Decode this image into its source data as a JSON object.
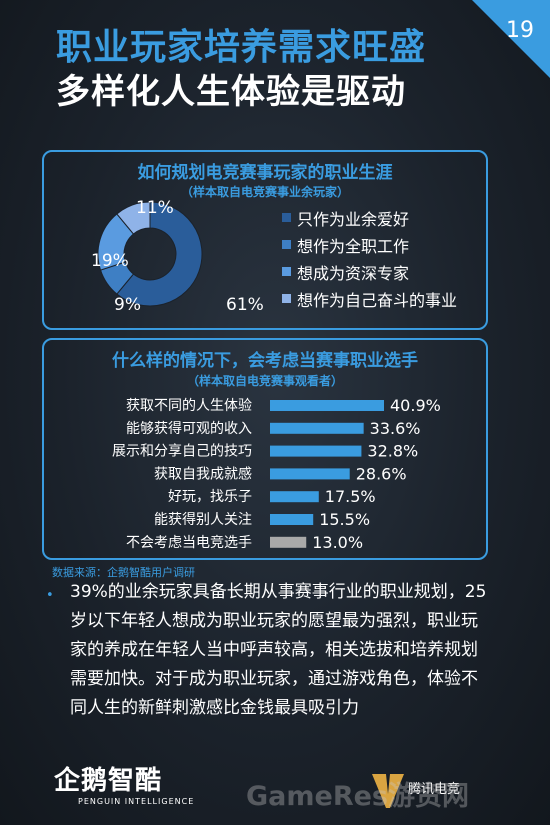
{
  "header": {
    "title_line1": "职业玩家培养需求旺盛",
    "title_line2": "多样化人生体验是驱动",
    "page_number": "19"
  },
  "colors": {
    "accent": "#3a9ce0",
    "donut": [
      "#2a5d9a",
      "#3e7fc4",
      "#5a9be0",
      "#8fb3e8"
    ],
    "bar": "#3a9ce0",
    "bar_muted": "#a9a9a9"
  },
  "chart_data": [
    {
      "type": "pie",
      "title": "如何规划电竞赛事玩家的职业生涯",
      "subtitle": "（样本取自电竞赛事业余玩家）",
      "categories": [
        "只作为业余爱好",
        "想作为全职工作",
        "想成为资深专家",
        "想作为自己奋斗的事业"
      ],
      "values": [
        61,
        9,
        19,
        11
      ],
      "value_labels": [
        "61%",
        "9%",
        "19%",
        "11%"
      ],
      "legend_position": "right"
    },
    {
      "type": "bar",
      "orientation": "horizontal",
      "title": "什么样的情况下，会考虑当赛事职业选手",
      "subtitle": "（样本取自电竞赛事观看者）",
      "categories": [
        "获取不同的人生体验",
        "能够获得可观的收入",
        "展示和分享自己的技巧",
        "获取自我成就感",
        "好玩，找乐子",
        "能获得别人关注",
        "不会考虑当电竞选手"
      ],
      "values": [
        40.9,
        33.6,
        32.8,
        28.6,
        17.5,
        15.5,
        13.0
      ],
      "value_labels": [
        "40.9%",
        "33.6%",
        "32.8%",
        "28.6%",
        "17.5%",
        "15.5%",
        "13.0%"
      ],
      "xlim": [
        0,
        40.9
      ]
    }
  ],
  "source": "数据来源：企鹅智酷用户调研",
  "bullet_glyph": "•",
  "paragraph": "39%的业余玩家具备长期从事赛事行业的职业规划，25岁以下年轻人想成为职业玩家的愿望最为强烈，职业玩家的养成在年轻人当中呼声较高，相关选拔和培养规划需要加快。对于成为职业玩家，通过游戏角色，体验不同人生的新鲜刺激感比金钱最具吸引力",
  "footer": {
    "logo_cn": "企鹅智酷",
    "logo_en": "PENGUIN INTELLIGENCE",
    "brand_cn": "腾讯电竞",
    "watermark": "GameRes游资网"
  }
}
